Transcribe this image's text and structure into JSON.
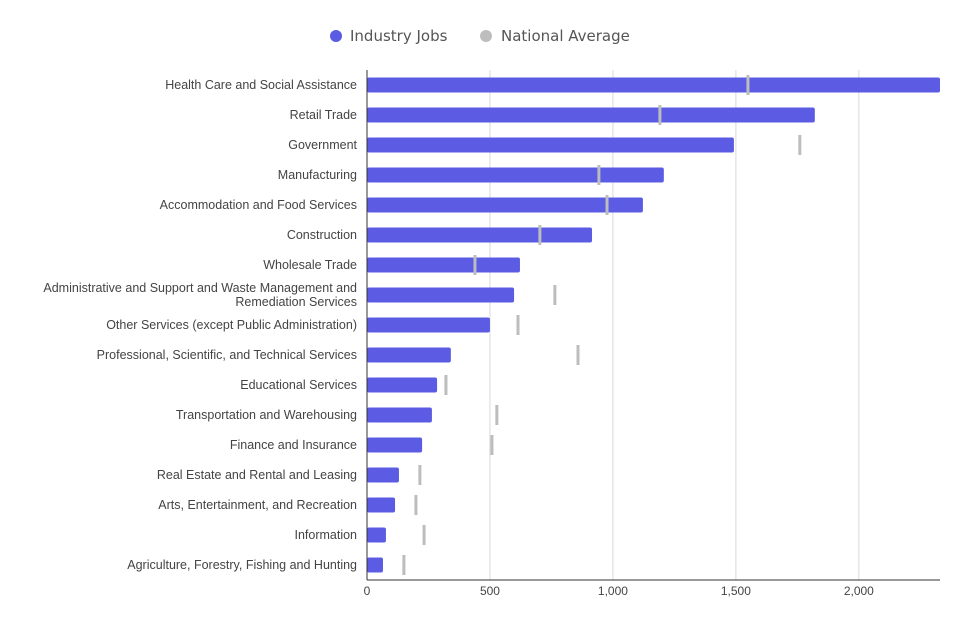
{
  "chart_data": {
    "type": "bar",
    "orientation": "horizontal",
    "title": "",
    "xlabel": "",
    "ylabel": "",
    "xlim": [
      0,
      2330
    ],
    "xticks": [
      0,
      500,
      1000,
      1500,
      2000
    ],
    "xtick_labels": [
      "0",
      "500",
      "1,000",
      "1,500",
      "2,000"
    ],
    "grid": true,
    "legend_position": "top",
    "categories": [
      "Health Care and Social Assistance",
      "Retail Trade",
      "Government",
      "Manufacturing",
      "Accommodation and Food Services",
      "Construction",
      "Wholesale Trade",
      "Administrative and Support and Waste Management and Remediation Services",
      "Other Services (except Public Administration)",
      "Professional, Scientific, and Technical Services",
      "Educational Services",
      "Transportation and Warehousing",
      "Finance and Insurance",
      "Real Estate and Rental and Leasing",
      "Arts, Entertainment, and Recreation",
      "Information",
      "Agriculture, Forestry, Fishing and Hunting"
    ],
    "category_lines": {
      "7": [
        "Administrative and Support and Waste Management and",
        "Remediation Services"
      ]
    },
    "series": [
      {
        "name": "Industry Jobs",
        "color": "#5b5be3",
        "mark": "bar",
        "values": [
          2330,
          1821,
          1492,
          1207,
          1122,
          915,
          622,
          598,
          500,
          341,
          285,
          264,
          224,
          130,
          114,
          77,
          65
        ]
      },
      {
        "name": "National Average",
        "color": "#bdbdbd",
        "mark": "tick",
        "values": [
          1549,
          1191,
          1760,
          943,
          976,
          703,
          439,
          764,
          614,
          858,
          321,
          528,
          508,
          215,
          199,
          232,
          150
        ]
      }
    ]
  }
}
